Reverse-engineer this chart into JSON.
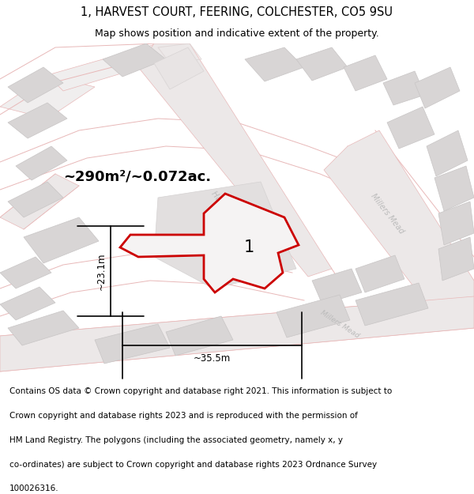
{
  "title": "1, HARVEST COURT, FEERING, COLCHESTER, CO5 9SU",
  "subtitle": "Map shows position and indicative extent of the property.",
  "footer_lines": [
    "Contains OS data © Crown copyright and database right 2021. This information is subject to",
    "Crown copyright and database rights 2023 and is reproduced with the permission of",
    "HM Land Registry. The polygons (including the associated geometry, namely x, y",
    "co-ordinates) are subject to Crown copyright and database rights 2023 Ordnance Survey",
    "100026316."
  ],
  "area_label": "~290m²/~0.072ac.",
  "dim_width": "~35.5m",
  "dim_height": "~23.1m",
  "plot_number": "1",
  "map_bg": "#f0eeee",
  "building_fill": "#d8d5d5",
  "building_edge": "#c8c5c5",
  "road_fill": "#f0eeee",
  "road_line": "#e8b8b8",
  "plot_outline": "#cc0000",
  "plot_fill": "#f5f3f3",
  "title_fontsize": 10.5,
  "subtitle_fontsize": 9,
  "footer_fontsize": 7.5,
  "label_fontsize": 7,
  "road_label_color": "#bbbbbb",
  "dim_line_color": "#000000"
}
